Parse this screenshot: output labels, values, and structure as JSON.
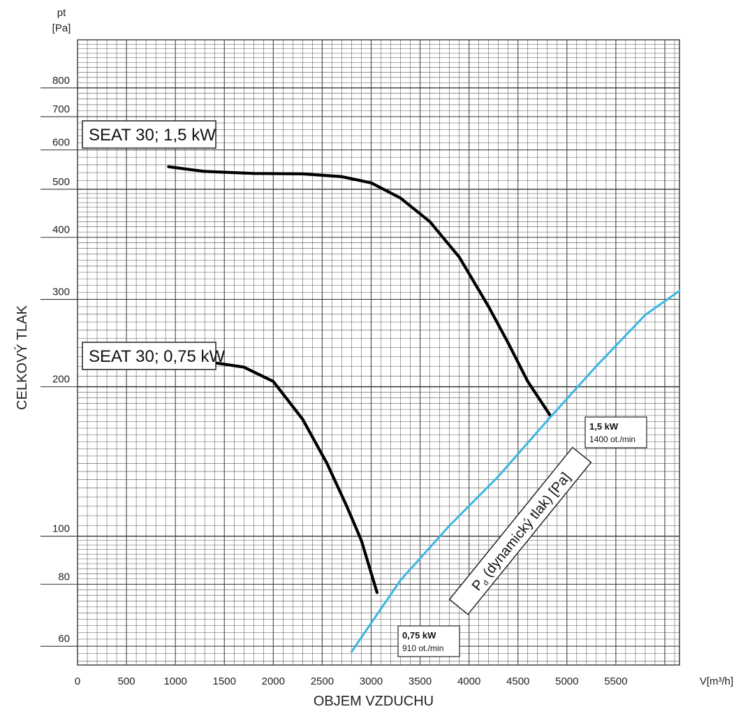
{
  "chart_data": {
    "type": "line",
    "y_unit_top": "pt",
    "y_unit_bottom": "[Pa]",
    "ylabel": "CELKOVÝ TLAK",
    "xlabel": "OBJEM VZDUCHU",
    "x_unit_label": "V[m³/h]",
    "xlim": [
      0,
      6150
    ],
    "ylim": [
      55,
      1000
    ],
    "y_scale": "log",
    "grid": true,
    "x_ticks": [
      0,
      500,
      1000,
      1500,
      2000,
      2500,
      3000,
      3500,
      4000,
      4500,
      5000,
      5500
    ],
    "y_ticks": [
      60,
      80,
      100,
      200,
      300,
      400,
      500,
      600,
      700,
      800
    ],
    "series": [
      {
        "name": "SEAT 30; 1,5 kW",
        "color": "#000000",
        "x": [
          930,
          1300,
          1800,
          2300,
          2700,
          3000,
          3300,
          3600,
          3900,
          4200,
          4400,
          4600,
          4830
        ],
        "y": [
          555,
          543,
          538,
          537,
          530,
          515,
          480,
          430,
          365,
          290,
          245,
          205,
          175
        ]
      },
      {
        "name": "SEAT 30; 0,75 kW",
        "color": "#000000",
        "x": [
          620,
          900,
          1300,
          1700,
          2000,
          2300,
          2550,
          2750,
          2900,
          3060
        ],
        "y": [
          230,
          227,
          225,
          219,
          205,
          172,
          140,
          115,
          98,
          77
        ]
      },
      {
        "name": "Pd (dynamický tlak) [Pa]",
        "color": "#3bb6e2",
        "x": [
          2800,
          3300,
          3800,
          4300,
          4800,
          5300,
          5800,
          6150
        ],
        "y": [
          58.5,
          81.5,
          105,
          132,
          171,
          220,
          279,
          312
        ]
      }
    ],
    "annotations": [
      {
        "title": "1,5  kW",
        "subtitle": "1400 ot./min"
      },
      {
        "title": "0,75  kW",
        "subtitle": "910 ot./min"
      }
    ],
    "diagonal_label_main": "P",
    "diagonal_label_sub": "d",
    "diagonal_label_rest": " (dynamický tlak) [Pa]"
  }
}
